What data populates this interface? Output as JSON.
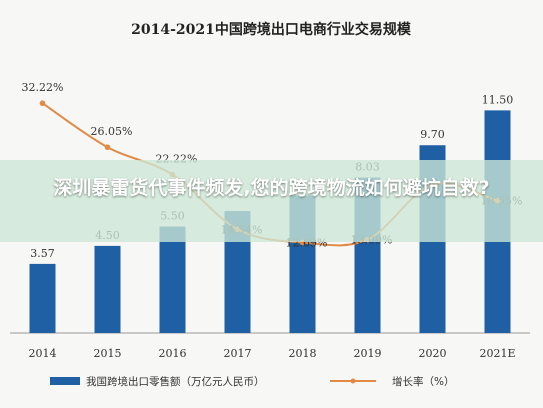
{
  "overlay": {
    "headline": "深圳暴雷货代事件频发,您的跨境物流如何避坑自救?"
  },
  "colors": {
    "bar": "#1f5fa3",
    "line": "#e08a45",
    "background": "#f7f7f5",
    "banner": "#cde8d6"
  },
  "chart_data": {
    "type": "bar",
    "title": "2014-2021中国跨境出口电商行业交易规模",
    "categories": [
      "2014",
      "2015",
      "2016",
      "2017",
      "2018",
      "2019",
      "2020",
      "2021E"
    ],
    "series": [
      {
        "name": "我国跨境出口零售额（万亿元人民币）",
        "type": "bar",
        "values": [
          3.57,
          4.5,
          5.5,
          6.3,
          7.1,
          8.03,
          9.7,
          11.5
        ],
        "labels": [
          "3.57",
          "4.50",
          "5.50",
          "",
          "",
          "8.03",
          "9.70",
          "11.50"
        ]
      },
      {
        "name": "增长率（%）",
        "type": "line",
        "values": [
          32.22,
          26.05,
          22.22,
          14.54,
          12.69,
          13.09,
          20.8,
          18.55
        ],
        "labels": [
          "32.22%",
          "26.05%",
          "22.22%",
          "14.54%",
          "12.69%",
          "13.09%",
          "",
          "18.55%"
        ]
      }
    ],
    "ylim": [
      0,
      14
    ],
    "y2lim": [
      0,
      38
    ],
    "legend": "bottom",
    "grid": false
  }
}
